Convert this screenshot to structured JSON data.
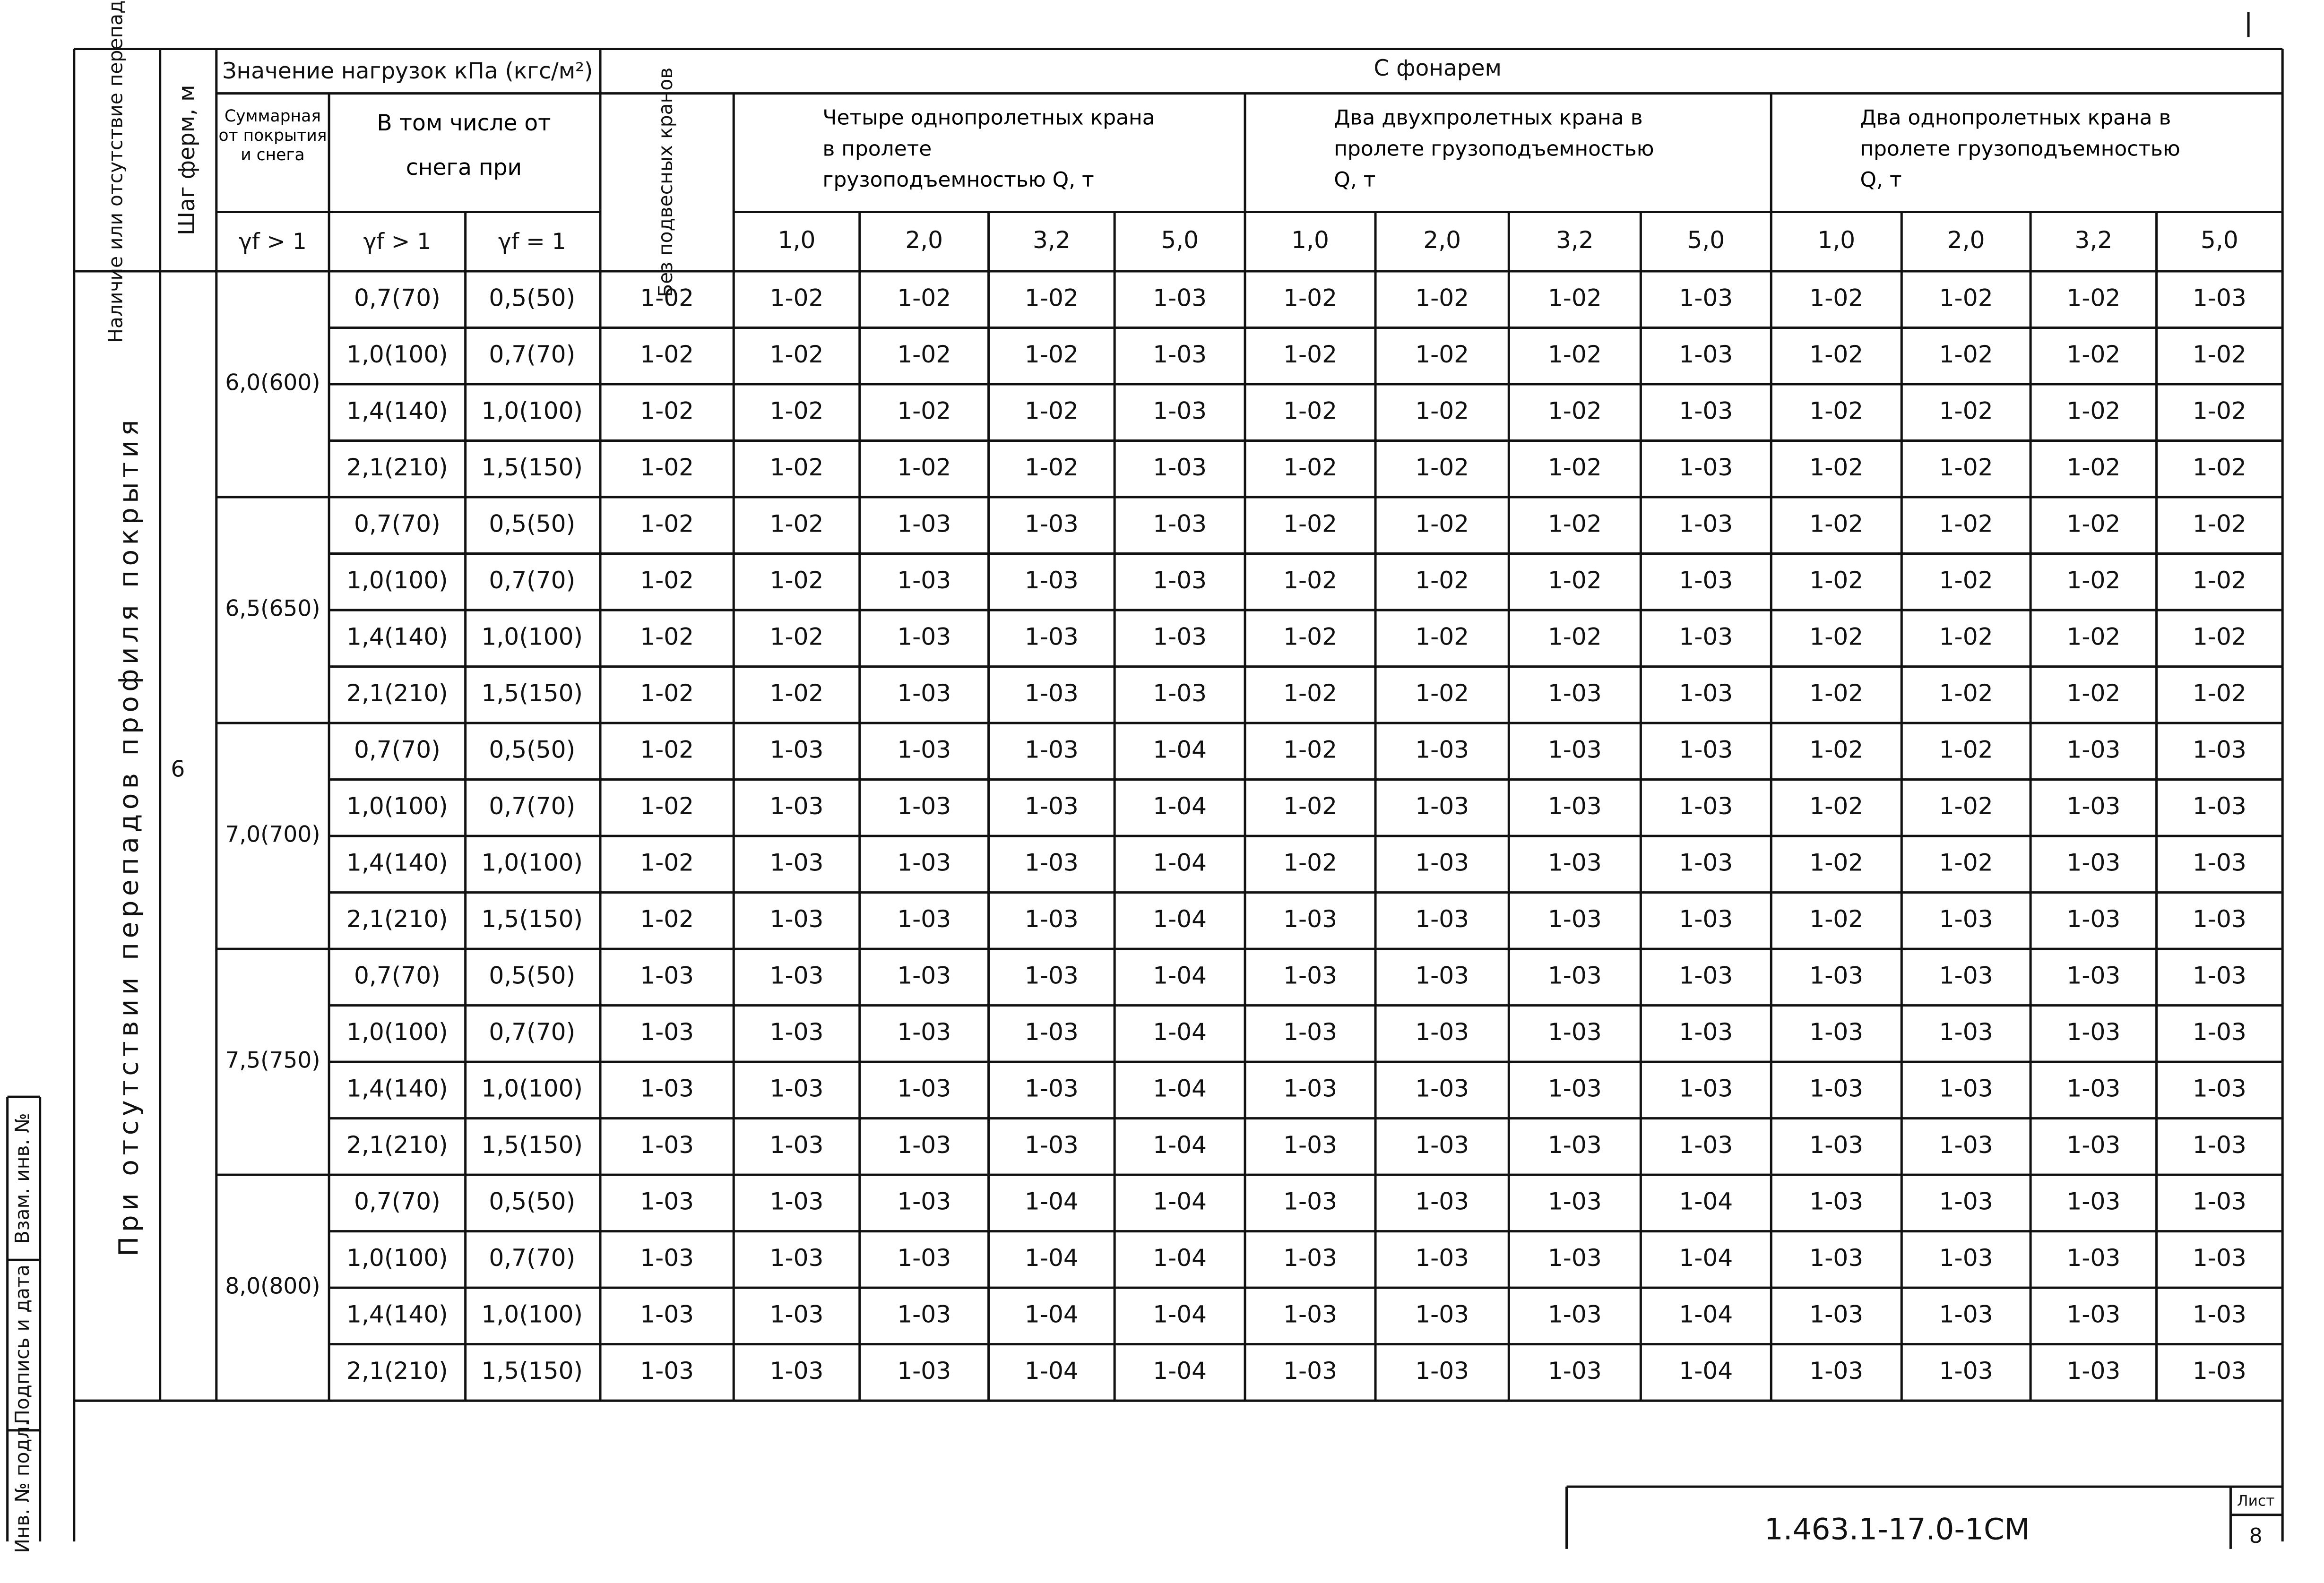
{
  "sheet": {
    "header": {
      "presence": "Наличие или отсутствие перепадов",
      "truss_step": "Шаг ферм, м",
      "load_values": "Значение нагрузок кПа (кгс/м²)",
      "with_lantern": "С фонарем",
      "total": "Суммарная от покрытия и снега",
      "including": "В том числе от снега при",
      "gf_gt1_total": "γf > 1",
      "gf_gt1": "γf > 1",
      "gf_eq1": "γf = 1",
      "no_cranes": "Без подвесных кранов",
      "crane_groups": [
        "Четыре однопролетных крана в пролете грузоподъемностью Q, т",
        "Два двухпролетных крана в пролете грузоподъемностью Q, т",
        "Два однопролетных крана в пролете грузоподъемностью Q, т"
      ],
      "q_values": [
        "1,0",
        "2,0",
        "3,2",
        "5,0"
      ]
    },
    "condition": "При отсутствии перепадов профиля покрытия",
    "step": "6",
    "groups": [
      {
        "total": "6,0(600)",
        "rows": [
          [
            "0,7(70)",
            "0,5(50)",
            "1-02",
            "1-02",
            "1-02",
            "1-02",
            "1-03",
            "1-02",
            "1-02",
            "1-02",
            "1-03",
            "1-02",
            "1-02",
            "1-02",
            "1-03"
          ],
          [
            "1,0(100)",
            "0,7(70)",
            "1-02",
            "1-02",
            "1-02",
            "1-02",
            "1-03",
            "1-02",
            "1-02",
            "1-02",
            "1-03",
            "1-02",
            "1-02",
            "1-02",
            "1-02"
          ],
          [
            "1,4(140)",
            "1,0(100)",
            "1-02",
            "1-02",
            "1-02",
            "1-02",
            "1-03",
            "1-02",
            "1-02",
            "1-02",
            "1-03",
            "1-02",
            "1-02",
            "1-02",
            "1-02"
          ],
          [
            "2,1(210)",
            "1,5(150)",
            "1-02",
            "1-02",
            "1-02",
            "1-02",
            "1-03",
            "1-02",
            "1-02",
            "1-02",
            "1-03",
            "1-02",
            "1-02",
            "1-02",
            "1-02"
          ]
        ]
      },
      {
        "total": "6,5(650)",
        "rows": [
          [
            "0,7(70)",
            "0,5(50)",
            "1-02",
            "1-02",
            "1-03",
            "1-03",
            "1-03",
            "1-02",
            "1-02",
            "1-02",
            "1-03",
            "1-02",
            "1-02",
            "1-02",
            "1-02"
          ],
          [
            "1,0(100)",
            "0,7(70)",
            "1-02",
            "1-02",
            "1-03",
            "1-03",
            "1-03",
            "1-02",
            "1-02",
            "1-02",
            "1-03",
            "1-02",
            "1-02",
            "1-02",
            "1-02"
          ],
          [
            "1,4(140)",
            "1,0(100)",
            "1-02",
            "1-02",
            "1-03",
            "1-03",
            "1-03",
            "1-02",
            "1-02",
            "1-02",
            "1-03",
            "1-02",
            "1-02",
            "1-02",
            "1-02"
          ],
          [
            "2,1(210)",
            "1,5(150)",
            "1-02",
            "1-02",
            "1-03",
            "1-03",
            "1-03",
            "1-02",
            "1-02",
            "1-03",
            "1-03",
            "1-02",
            "1-02",
            "1-02",
            "1-02"
          ]
        ]
      },
      {
        "total": "7,0(700)",
        "rows": [
          [
            "0,7(70)",
            "0,5(50)",
            "1-02",
            "1-03",
            "1-03",
            "1-03",
            "1-04",
            "1-02",
            "1-03",
            "1-03",
            "1-03",
            "1-02",
            "1-02",
            "1-03",
            "1-03"
          ],
          [
            "1,0(100)",
            "0,7(70)",
            "1-02",
            "1-03",
            "1-03",
            "1-03",
            "1-04",
            "1-02",
            "1-03",
            "1-03",
            "1-03",
            "1-02",
            "1-02",
            "1-03",
            "1-03"
          ],
          [
            "1,4(140)",
            "1,0(100)",
            "1-02",
            "1-03",
            "1-03",
            "1-03",
            "1-04",
            "1-02",
            "1-03",
            "1-03",
            "1-03",
            "1-02",
            "1-02",
            "1-03",
            "1-03"
          ],
          [
            "2,1(210)",
            "1,5(150)",
            "1-02",
            "1-03",
            "1-03",
            "1-03",
            "1-04",
            "1-03",
            "1-03",
            "1-03",
            "1-03",
            "1-02",
            "1-03",
            "1-03",
            "1-03"
          ]
        ]
      },
      {
        "total": "7,5(750)",
        "rows": [
          [
            "0,7(70)",
            "0,5(50)",
            "1-03",
            "1-03",
            "1-03",
            "1-03",
            "1-04",
            "1-03",
            "1-03",
            "1-03",
            "1-03",
            "1-03",
            "1-03",
            "1-03",
            "1-03"
          ],
          [
            "1,0(100)",
            "0,7(70)",
            "1-03",
            "1-03",
            "1-03",
            "1-03",
            "1-04",
            "1-03",
            "1-03",
            "1-03",
            "1-03",
            "1-03",
            "1-03",
            "1-03",
            "1-03"
          ],
          [
            "1,4(140)",
            "1,0(100)",
            "1-03",
            "1-03",
            "1-03",
            "1-03",
            "1-04",
            "1-03",
            "1-03",
            "1-03",
            "1-03",
            "1-03",
            "1-03",
            "1-03",
            "1-03"
          ],
          [
            "2,1(210)",
            "1,5(150)",
            "1-03",
            "1-03",
            "1-03",
            "1-03",
            "1-04",
            "1-03",
            "1-03",
            "1-03",
            "1-03",
            "1-03",
            "1-03",
            "1-03",
            "1-03"
          ]
        ]
      },
      {
        "total": "8,0(800)",
        "rows": [
          [
            "0,7(70)",
            "0,5(50)",
            "1-03",
            "1-03",
            "1-03",
            "1-04",
            "1-04",
            "1-03",
            "1-03",
            "1-03",
            "1-04",
            "1-03",
            "1-03",
            "1-03",
            "1-03"
          ],
          [
            "1,0(100)",
            "0,7(70)",
            "1-03",
            "1-03",
            "1-03",
            "1-04",
            "1-04",
            "1-03",
            "1-03",
            "1-03",
            "1-04",
            "1-03",
            "1-03",
            "1-03",
            "1-03"
          ],
          [
            "1,4(140)",
            "1,0(100)",
            "1-03",
            "1-03",
            "1-03",
            "1-04",
            "1-04",
            "1-03",
            "1-03",
            "1-03",
            "1-04",
            "1-03",
            "1-03",
            "1-03",
            "1-03"
          ],
          [
            "2,1(210)",
            "1,5(150)",
            "1-03",
            "1-03",
            "1-03",
            "1-04",
            "1-04",
            "1-03",
            "1-03",
            "1-03",
            "1-04",
            "1-03",
            "1-03",
            "1-03",
            "1-03"
          ]
        ]
      }
    ]
  },
  "stamp": {
    "replace": "Взам. инв. №",
    "signature": "Подпись и дата",
    "inv": "Инв. № подл.",
    "code": "1.463.1-17.0-1CM",
    "sheet_label": "Лист",
    "sheet_no": "8"
  }
}
